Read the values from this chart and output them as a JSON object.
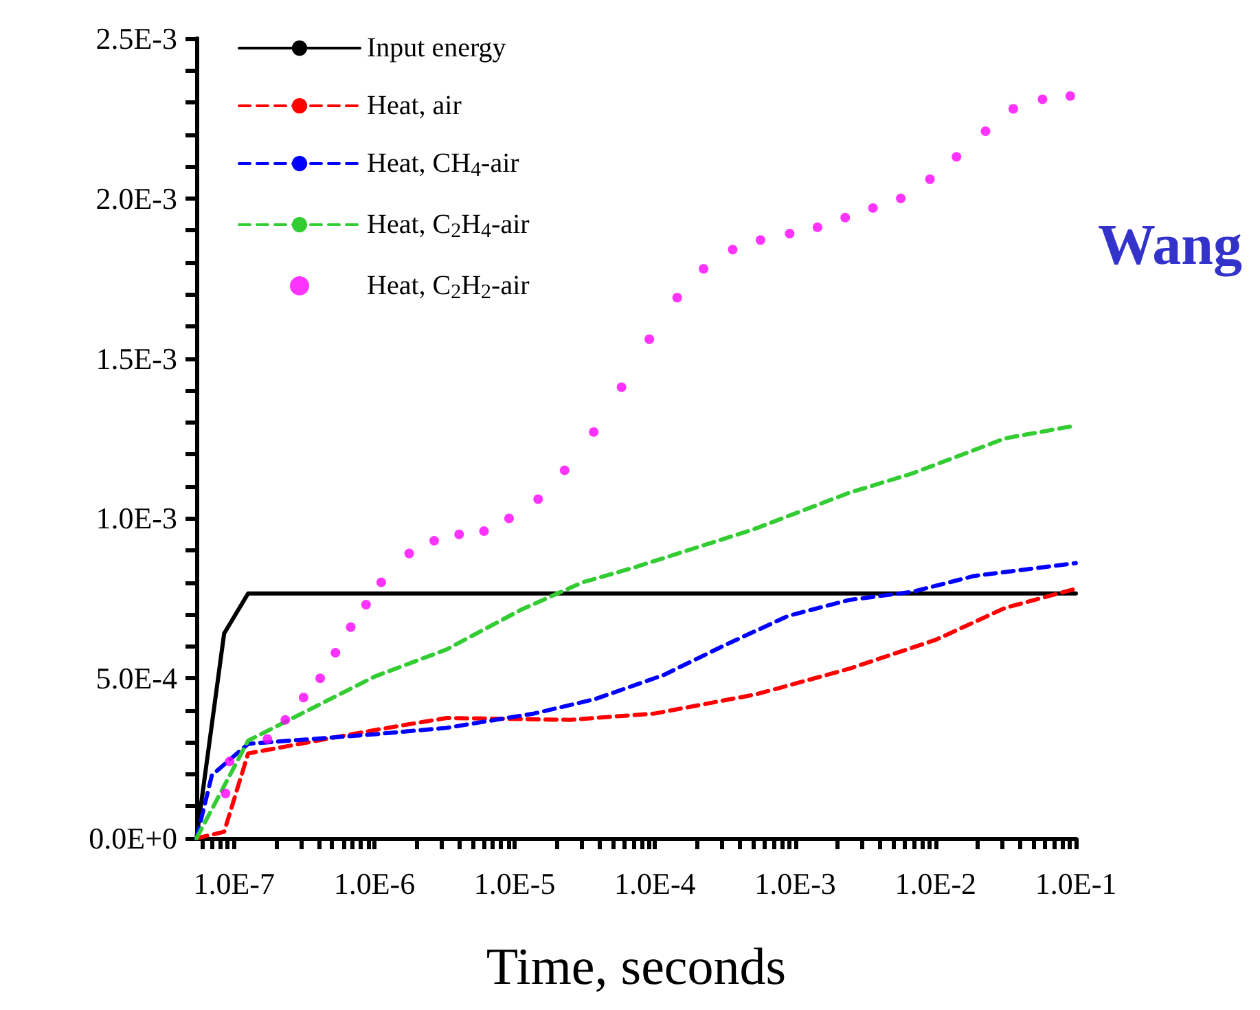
{
  "chart_data": {
    "type": "line",
    "xlabel": "Time, seconds",
    "log": "x",
    "xlim": [
      5.4e-08,
      0.1
    ],
    "ylim": [
      0,
      0.0025
    ],
    "xticks": [
      {
        "value": 6e-08,
        "label": null
      },
      {
        "value": 7e-08,
        "label": null
      },
      {
        "value": 8e-08,
        "label": null
      },
      {
        "value": 9e-08,
        "label": null
      },
      {
        "value": 1e-07,
        "label": "1.0E-7"
      },
      {
        "value": 2e-07,
        "label": null
      },
      {
        "value": 3e-07,
        "label": null
      },
      {
        "value": 4e-07,
        "label": null
      },
      {
        "value": 5e-07,
        "label": null
      },
      {
        "value": 6e-07,
        "label": null
      },
      {
        "value": 7e-07,
        "label": null
      },
      {
        "value": 8e-07,
        "label": null
      },
      {
        "value": 9e-07,
        "label": null
      },
      {
        "value": 1e-06,
        "label": "1.0E-6"
      },
      {
        "value": 2e-06,
        "label": null
      },
      {
        "value": 3e-06,
        "label": null
      },
      {
        "value": 4e-06,
        "label": null
      },
      {
        "value": 5e-06,
        "label": null
      },
      {
        "value": 6e-06,
        "label": null
      },
      {
        "value": 7e-06,
        "label": null
      },
      {
        "value": 8e-06,
        "label": null
      },
      {
        "value": 9e-06,
        "label": null
      },
      {
        "value": 1e-05,
        "label": "1.0E-5"
      },
      {
        "value": 2e-05,
        "label": null
      },
      {
        "value": 3e-05,
        "label": null
      },
      {
        "value": 4e-05,
        "label": null
      },
      {
        "value": 5e-05,
        "label": null
      },
      {
        "value": 6e-05,
        "label": null
      },
      {
        "value": 7e-05,
        "label": null
      },
      {
        "value": 8e-05,
        "label": null
      },
      {
        "value": 9e-05,
        "label": null
      },
      {
        "value": 0.0001,
        "label": "1.0E-4"
      },
      {
        "value": 0.0002,
        "label": null
      },
      {
        "value": 0.0003,
        "label": null
      },
      {
        "value": 0.0004,
        "label": null
      },
      {
        "value": 0.0005,
        "label": null
      },
      {
        "value": 0.0006,
        "label": null
      },
      {
        "value": 0.0007,
        "label": null
      },
      {
        "value": 0.0008,
        "label": null
      },
      {
        "value": 0.0009,
        "label": null
      },
      {
        "value": 0.001,
        "label": "1.0E-3"
      },
      {
        "value": 0.002,
        "label": null
      },
      {
        "value": 0.003,
        "label": null
      },
      {
        "value": 0.004,
        "label": null
      },
      {
        "value": 0.005,
        "label": null
      },
      {
        "value": 0.006,
        "label": null
      },
      {
        "value": 0.007,
        "label": null
      },
      {
        "value": 0.008,
        "label": null
      },
      {
        "value": 0.009,
        "label": null
      },
      {
        "value": 0.01,
        "label": "1.0E-2"
      },
      {
        "value": 0.02,
        "label": null
      },
      {
        "value": 0.03,
        "label": null
      },
      {
        "value": 0.04,
        "label": null
      },
      {
        "value": 0.05,
        "label": null
      },
      {
        "value": 0.06,
        "label": null
      },
      {
        "value": 0.07,
        "label": null
      },
      {
        "value": 0.08,
        "label": null
      },
      {
        "value": 0.09,
        "label": null
      },
      {
        "value": 0.1,
        "label": "1.0E-1"
      }
    ],
    "yticks": [
      {
        "value": 0,
        "label": "0.0E+0"
      },
      {
        "value": 0.0001,
        "label": null
      },
      {
        "value": 0.0002,
        "label": null
      },
      {
        "value": 0.0003,
        "label": null
      },
      {
        "value": 0.0004,
        "label": null
      },
      {
        "value": 0.0005,
        "label": "5.0E-4"
      },
      {
        "value": 0.0006,
        "label": null
      },
      {
        "value": 0.0007,
        "label": null
      },
      {
        "value": 0.0008,
        "label": null
      },
      {
        "value": 0.0009,
        "label": null
      },
      {
        "value": 0.001,
        "label": "1.0E-3"
      },
      {
        "value": 0.0011,
        "label": null
      },
      {
        "value": 0.0012,
        "label": null
      },
      {
        "value": 0.0013,
        "label": null
      },
      {
        "value": 0.0014,
        "label": null
      },
      {
        "value": 0.0015,
        "label": "1.5E-3"
      },
      {
        "value": 0.0016,
        "label": null
      },
      {
        "value": 0.0017,
        "label": null
      },
      {
        "value": 0.0018,
        "label": null
      },
      {
        "value": 0.0019,
        "label": null
      },
      {
        "value": 0.002,
        "label": "2.0E-3"
      },
      {
        "value": 0.0021,
        "label": null
      },
      {
        "value": 0.0022,
        "label": null
      },
      {
        "value": 0.0023,
        "label": null
      },
      {
        "value": 0.0024,
        "label": null
      },
      {
        "value": 0.0025,
        "label": "2.5E-3"
      }
    ],
    "grid": false,
    "legend": "top left",
    "annotations": [
      "Wang"
    ],
    "series": [
      {
        "name": "Input energy",
        "color": "#000000",
        "line_style": "solid",
        "marker": "none",
        "x": [
          5.4e-08,
          8.5e-08,
          1.26e-07,
          0.1
        ],
        "values": [
          0,
          0.00064,
          0.000765,
          0.000765
        ]
      },
      {
        "name": "Heat, air",
        "color": "#ff0000",
        "line_style": "dashed",
        "marker": "none",
        "x": [
          5.4e-08,
          8.5e-08,
          1.26e-07,
          1e-06,
          3.27e-06,
          2.49e-05,
          0.0001,
          0.000528,
          0.00243,
          0.01,
          0.0313,
          0.1
        ],
        "values": [
          0,
          2e-05,
          0.000265,
          0.000338,
          0.000376,
          0.00037,
          0.00039,
          0.00045,
          0.00053,
          0.00062,
          0.00072,
          0.00078
        ]
      },
      {
        "name": "Heat, CH$_{4}$-air",
        "color": "#0000ff",
        "line_style": "dashed",
        "marker": "none",
        "x": [
          5.4e-08,
          6.95e-08,
          1.26e-07,
          1e-06,
          3.27e-06,
          1.38e-05,
          3.75e-05,
          0.000115,
          0.00032,
          0.00089,
          0.00243,
          0.00679,
          0.0189,
          0.1
        ],
        "values": [
          0,
          0.000197,
          0.000295,
          0.000325,
          0.000345,
          0.00039,
          0.000435,
          0.00051,
          0.000605,
          0.000695,
          0.000745,
          0.00077,
          0.00082,
          0.00086
        ]
      },
      {
        "name": "Heat, C$_{2}$H$_{4}$-air",
        "color": "#33cc33",
        "line_style": "dashed",
        "marker": "none",
        "x": [
          5.4e-08,
          1.26e-07,
          1e-06,
          3.27e-06,
          1.12e-05,
          3.05e-05,
          6.95e-05,
          0.0005,
          0.00243,
          0.00679,
          0.0313,
          0.1
        ],
        "values": [
          0,
          0.000305,
          0.000505,
          0.00059,
          0.000715,
          0.0008,
          0.000845,
          0.000965,
          0.00108,
          0.00114,
          0.00125,
          0.00129
        ]
      },
      {
        "name": "Heat, C$_{2}$H$_{2}$-air",
        "type": "scatter",
        "color": "#ff00ff",
        "marker": "circle",
        "x": [
          8.7e-08,
          9.3e-08,
          1.73e-07,
          2.32e-07,
          3.13e-07,
          4.11e-07,
          5.28e-07,
          6.79e-07,
          8.73e-07,
          1.12e-06,
          1.77e-06,
          2.67e-06,
          4.02e-06,
          6.05e-06,
          9.12e-06,
          1.47e-05,
          2.27e-05,
          3.66e-05,
          5.78e-05,
          9.12e-05,
          0.000144,
          0.000222,
          0.000358,
          0.000565,
          0.000912,
          0.00144,
          0.00227,
          0.00358,
          0.00565,
          0.00912,
          0.0141,
          0.0227,
          0.0358,
          0.0578,
          0.0912
        ],
        "values": [
          0.00014,
          0.00024,
          0.00031,
          0.00037,
          0.00044,
          0.0005,
          0.00058,
          0.00066,
          0.00073,
          0.0008,
          0.00089,
          0.00093,
          0.00095,
          0.00096,
          0.001,
          0.00106,
          0.00115,
          0.00127,
          0.00141,
          0.00156,
          0.00169,
          0.00178,
          0.00184,
          0.00187,
          0.00189,
          0.00191,
          0.00194,
          0.00197,
          0.002,
          0.00206,
          0.00213,
          0.00221,
          0.00228,
          0.00231,
          0.00232
        ]
      }
    ]
  }
}
